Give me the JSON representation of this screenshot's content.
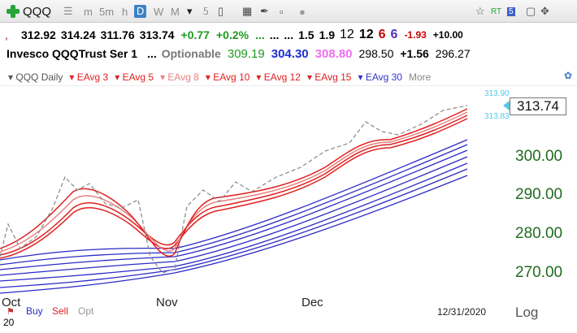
{
  "toolbar": {
    "symbol": "QQQ",
    "periods": [
      "m",
      "5m",
      "h",
      "D",
      "W",
      "M"
    ],
    "active_period": "D",
    "right_badges": [
      "RT",
      "5"
    ]
  },
  "quote": {
    "open": "312.92",
    "high": "314.24",
    "low": "311.76",
    "close": "313.74",
    "change": "+0.77",
    "change_pct": "+0.2%",
    "dots1": "...",
    "dots2": "...",
    "dots3": "...",
    "v1": "1.5",
    "v2": "1.9",
    "v3": "12",
    "v4": "12",
    "v5": "6",
    "v6": "6",
    "v7": "-1.93",
    "v8": "+10.00"
  },
  "info": {
    "name": "Invesco QQQTrust Ser 1",
    "dots": "...",
    "optionable": "Optionable",
    "p1": "309.19",
    "p2": "304.30",
    "p3": "308.80",
    "p4": "298.50",
    "p5": "+1.56",
    "p6": "296.27"
  },
  "indicators": {
    "main": "QQQ Daily",
    "items": [
      "EAvg 3",
      "EAvg 5",
      "EAvg 8",
      "EAvg 10",
      "EAvg 12",
      "EAvg 15",
      "EAvg 30"
    ],
    "colors": [
      "#e02020",
      "#e02020",
      "#e88080",
      "#e02020",
      "#e02020",
      "#e02020",
      "#3333cc"
    ],
    "more": "More"
  },
  "price_axis": {
    "current": "313.74",
    "band_high": "313.90",
    "band_low": "313.83",
    "ticks": [
      "300.00",
      "290.00",
      "280.00",
      "270.00"
    ]
  },
  "time_axis": {
    "labels": [
      "Oct",
      "Nov",
      "Dec"
    ],
    "date": "12/31/2020",
    "scale": "Log",
    "corner": "20"
  },
  "legend": {
    "buy": "Buy",
    "sell": "Sell",
    "opt": "Opt"
  },
  "chart_data": {
    "type": "line",
    "series": [
      {
        "name": "QQQ Daily",
        "color": "#888888",
        "values": [
          273,
          274,
          286,
          284,
          282,
          287,
          279,
          276,
          274,
          272,
          269,
          271,
          280,
          287,
          291,
          289,
          289,
          292,
          295,
          297,
          302,
          299,
          303,
          307,
          307,
          311,
          313.74
        ]
      },
      {
        "name": "EAvg 3",
        "color": "#e02020",
        "values": [
          273.5,
          276,
          284,
          284,
          282,
          285,
          279,
          276,
          274,
          271,
          272,
          275,
          281,
          286,
          289,
          290,
          291,
          293,
          296,
          298,
          302,
          300,
          302,
          305,
          307,
          310,
          312.5
        ]
      }
    ]
  }
}
